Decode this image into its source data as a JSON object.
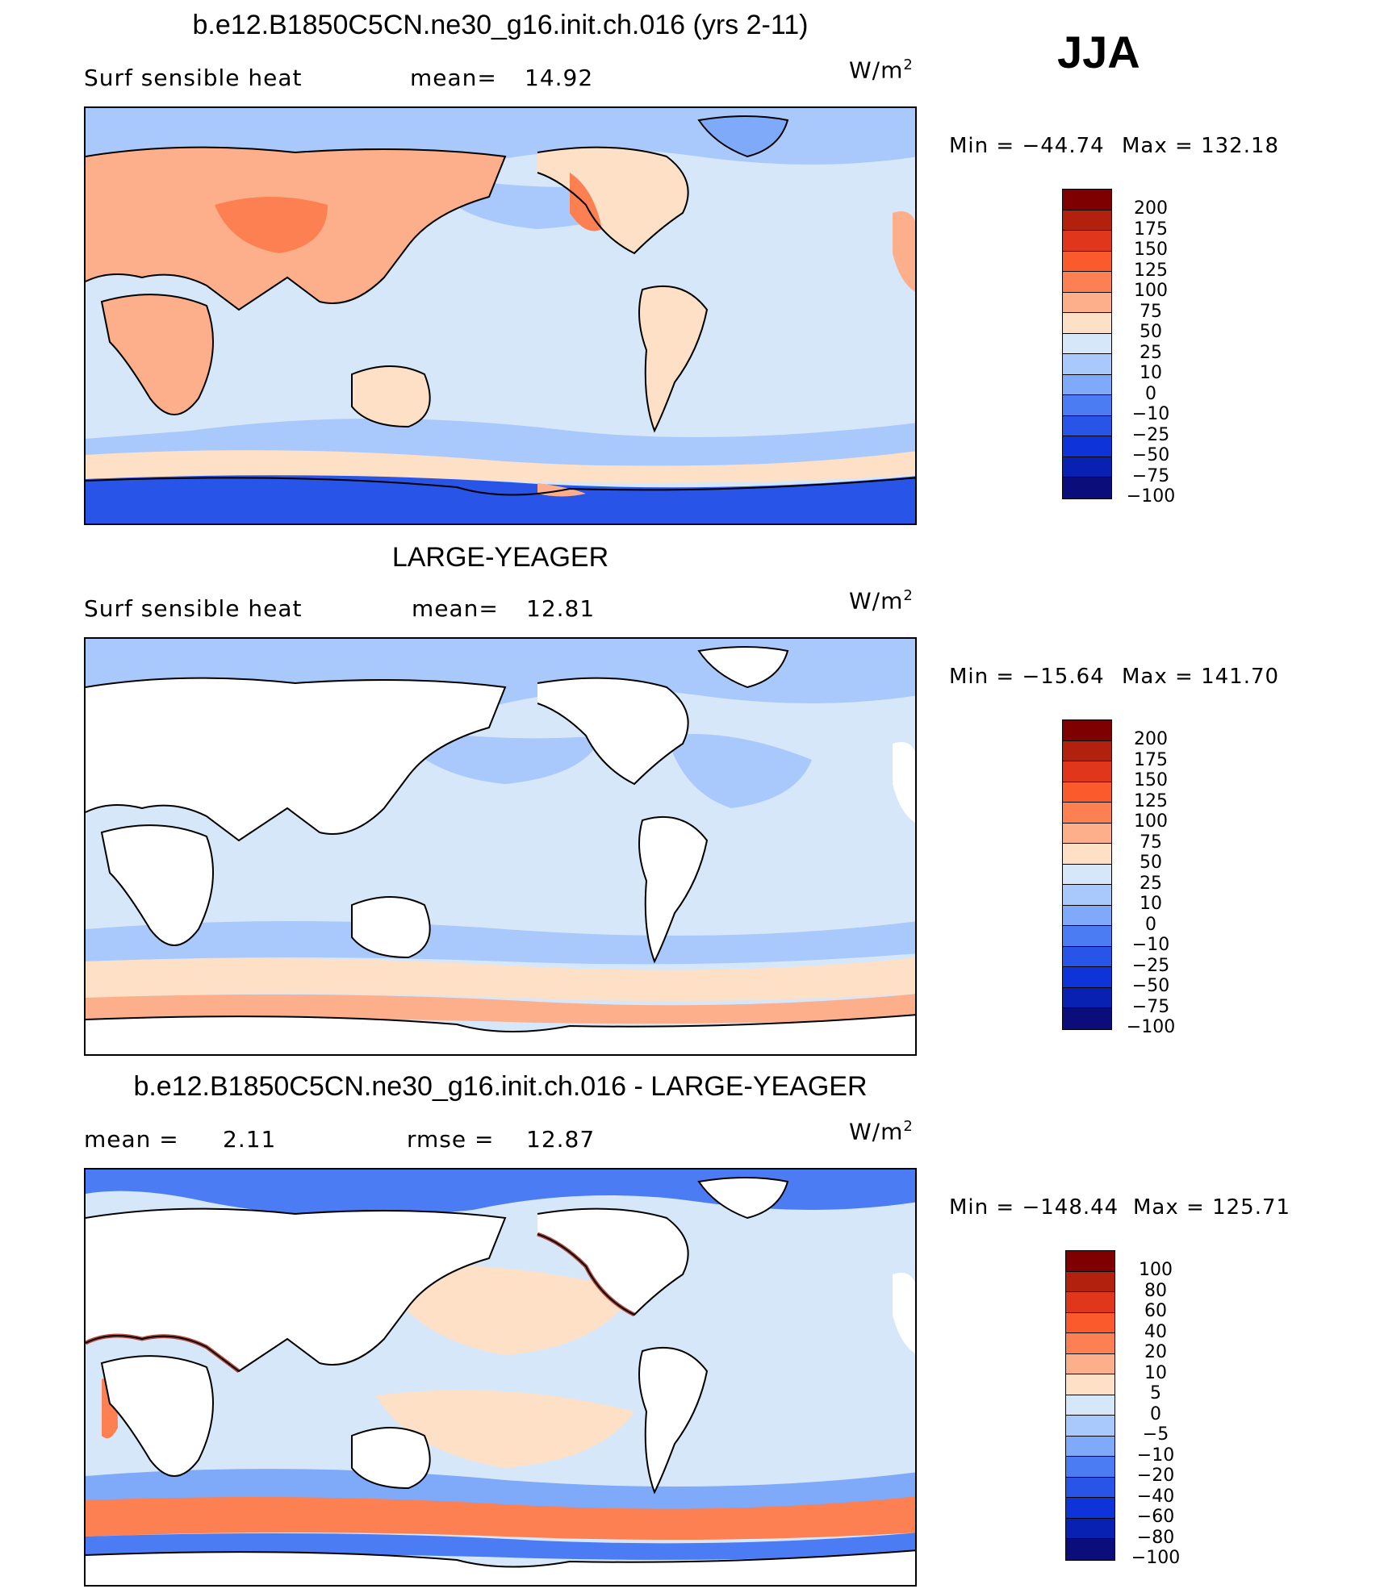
{
  "season": "JJA",
  "panels": [
    {
      "title": "b.e12.B1850C5CN.ne30_g16.init.ch.016 (yrs 2-11)",
      "left_label": "Surf  sensible  heat",
      "stat_label": "mean=",
      "stat_value": "14.92",
      "units": "W/m",
      "units_exp": "2",
      "min_label": "Min  =  −44.74",
      "max_label": "Max  =  132.18",
      "colorbar": {
        "colors": [
          "#7f0000",
          "#b2210e",
          "#e0361b",
          "#fb5a2d",
          "#fc8051",
          "#fdae8a",
          "#fde0c5",
          "#d6e7fa",
          "#a9c8fb",
          "#7eaaf9",
          "#4c7cf3",
          "#2854e8",
          "#0d33d9",
          "#0821b3",
          "#0a0d7a"
        ],
        "labels": [
          "200",
          "175",
          "150",
          "125",
          "100",
          "75",
          "50",
          "25",
          "10",
          "0",
          "−10",
          "−25",
          "−50",
          "−75",
          "−100"
        ]
      }
    },
    {
      "title": "LARGE-YEAGER",
      "left_label": "Surf  sensible  heat",
      "stat_label": "mean=",
      "stat_value": "12.81",
      "units": "W/m",
      "units_exp": "2",
      "min_label": "Min  =  −15.64",
      "max_label": "Max  =  141.70",
      "colorbar": {
        "colors": [
          "#7f0000",
          "#b2210e",
          "#e0361b",
          "#fb5a2d",
          "#fc8051",
          "#fdae8a",
          "#fde0c5",
          "#d6e7fa",
          "#a9c8fb",
          "#7eaaf9",
          "#4c7cf3",
          "#2854e8",
          "#0d33d9",
          "#0821b3",
          "#0a0d7a"
        ],
        "labels": [
          "200",
          "175",
          "150",
          "125",
          "100",
          "75",
          "50",
          "25",
          "10",
          "0",
          "−10",
          "−25",
          "−50",
          "−75",
          "−100"
        ]
      }
    },
    {
      "title": "b.e12.B1850C5CN.ne30_g16.init.ch.016 - LARGE-YEAGER",
      "left_label": "mean  =",
      "left_value": "2.11",
      "stat_label": "rmse  =",
      "stat_value": "12.87",
      "units": "W/m",
      "units_exp": "2",
      "min_label": "Min  =  −148.44",
      "max_label": "Max  =  125.71",
      "colorbar": {
        "colors": [
          "#7f0000",
          "#b2210e",
          "#e0361b",
          "#fb5a2d",
          "#fc8051",
          "#fdae8a",
          "#fde0c5",
          "#d6e7fa",
          "#a9c8fb",
          "#7eaaf9",
          "#4c7cf3",
          "#2854e8",
          "#0d33d9",
          "#0821b3",
          "#0a0d7a"
        ],
        "labels": [
          "100",
          "80",
          "60",
          "40",
          "20",
          "10",
          "5",
          "0",
          "−5",
          "−10",
          "−20",
          "−40",
          "−60",
          "−80",
          "−100"
        ]
      }
    }
  ],
  "fill_colors": {
    "ocean_light": "#d6e7fa",
    "ocean_mid": "#a9c8fb",
    "ocean_dark": "#7eaaf9",
    "antarctic": "#2854e8",
    "warm_light": "#fde0c5",
    "warm_mid": "#fdae8a",
    "warm_dark": "#fc8051",
    "land_blank": "#ffffff"
  }
}
